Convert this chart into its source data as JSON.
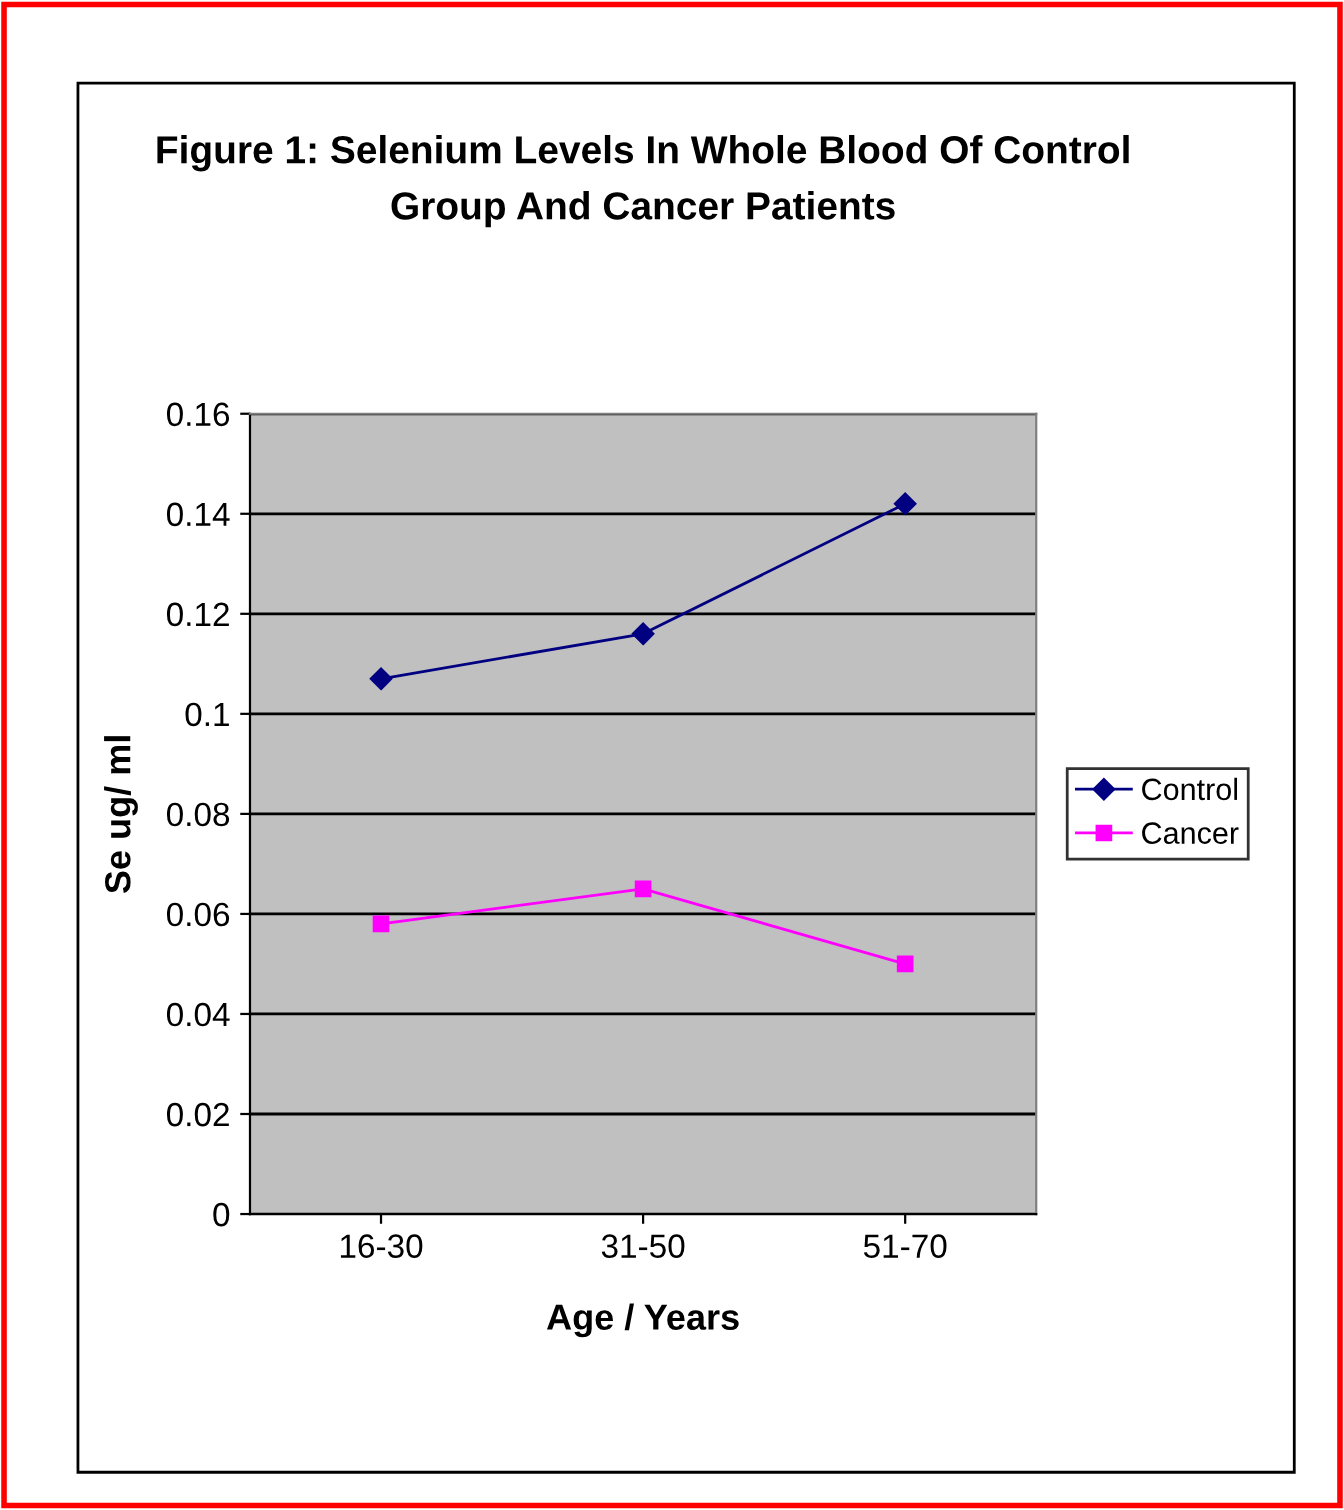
{
  "chart_data": {
    "type": "line",
    "title": "Figure 1: Selenium Levels In Whole Blood Of Control\nGroup And Cancer Patients",
    "xlabel": "Age / Years",
    "ylabel": "Se ug/ ml",
    "categories": [
      "16-30",
      "31-50",
      "51-70"
    ],
    "series": [
      {
        "name": "Control",
        "color": "#000080",
        "marker": "diamond",
        "values": [
          0.107,
          0.116,
          0.142
        ]
      },
      {
        "name": "Cancer",
        "color": "#ff00ff",
        "marker": "square",
        "values": [
          0.058,
          0.065,
          0.05
        ]
      }
    ],
    "ylim": [
      0,
      0.16
    ],
    "yticks": [
      {
        "value": 0,
        "label": "0"
      },
      0.02,
      0.04,
      0.06,
      0.08,
      {
        "value": 0.1,
        "label": "0.1"
      },
      0.12,
      0.14,
      0.16
    ],
    "grid": "y",
    "legend": "right"
  }
}
